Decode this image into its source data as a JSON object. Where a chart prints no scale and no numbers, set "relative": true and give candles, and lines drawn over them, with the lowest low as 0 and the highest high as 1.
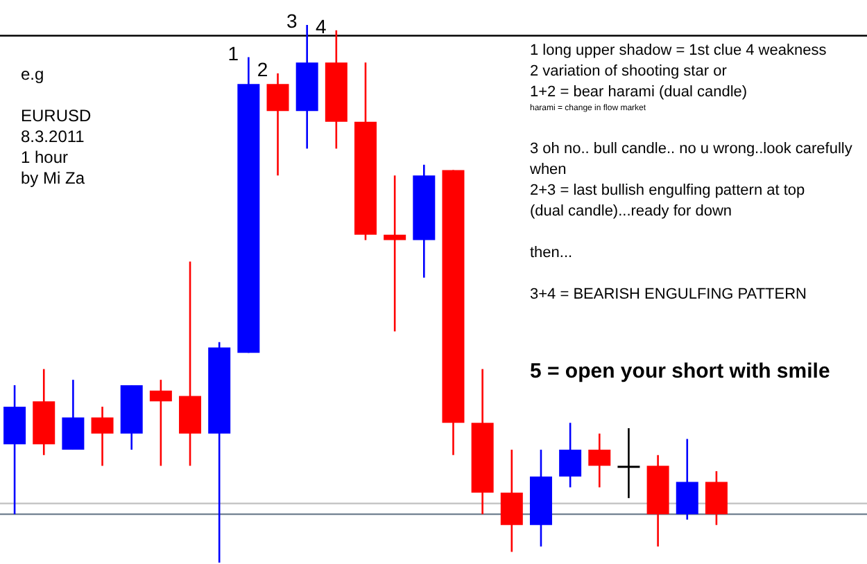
{
  "chart_data": {
    "type": "candlestick",
    "relative": true,
    "categories": [
      null,
      null,
      null,
      null,
      null,
      null,
      null,
      null,
      null,
      null,
      null,
      null,
      null,
      null,
      null,
      null,
      null,
      null,
      null,
      null,
      null,
      null,
      null,
      null,
      null
    ],
    "ohlc": [
      [
        0.22,
        0.33,
        0.09,
        0.29
      ],
      [
        0.3,
        0.36,
        0.2,
        0.22
      ],
      [
        0.21,
        0.34,
        0.21,
        0.27
      ],
      [
        0.27,
        0.29,
        0.18,
        0.24
      ],
      [
        0.24,
        0.33,
        0.21,
        0.33
      ],
      [
        0.32,
        0.34,
        0.18,
        0.3
      ],
      [
        0.31,
        0.56,
        0.18,
        0.24
      ],
      [
        0.24,
        0.41,
        0,
        0.4
      ],
      [
        0.39,
        0.94,
        0.39,
        0.89
      ],
      [
        0.89,
        0.91,
        0.72,
        0.84
      ],
      [
        0.84,
        1,
        0.77,
        0.93
      ],
      [
        0.93,
        0.99,
        0.77,
        0.82
      ],
      [
        0.82,
        0.93,
        0.6,
        0.61
      ],
      [
        0.61,
        0.72,
        0.43,
        0.6
      ],
      [
        0.6,
        0.74,
        0.53,
        0.72
      ],
      [
        0.73,
        0.73,
        0.2,
        0.26
      ],
      [
        0.26,
        0.36,
        0.09,
        0.13
      ],
      [
        0.13,
        0.21,
        0.02,
        0.07
      ],
      [
        0.07,
        0.21,
        0.03,
        0.16
      ],
      [
        0.16,
        0.26,
        0.14,
        0.21
      ],
      [
        0.21,
        0.24,
        0.14,
        0.18
      ],
      [
        0.18,
        0.25,
        0.12,
        0.18
      ],
      [
        0.18,
        0.2,
        0.03,
        0.09
      ],
      [
        0.09,
        0.23,
        0.08,
        0.15
      ],
      [
        0.15,
        0.17,
        0.07,
        0.09
      ]
    ],
    "colors": [
      "#0000ff",
      "#ff0000",
      "#0000ff",
      "#ff0000",
      "#0000ff",
      "#ff0000",
      "#ff0000",
      "#0000ff",
      "#0000ff",
      "#ff0000",
      "#0000ff",
      "#ff0000",
      "#ff0000",
      "#ff0000",
      "#0000ff",
      "#ff0000",
      "#ff0000",
      "#ff0000",
      "#0000ff",
      "#0000ff",
      "#ff0000",
      "#000000",
      "#ff0000",
      "#0000ff",
      "#ff0000"
    ],
    "value_labels": [
      null,
      null,
      null,
      null,
      null,
      null,
      null,
      null,
      "1",
      "2",
      "3",
      "4",
      null,
      null,
      null,
      null,
      null,
      null,
      null,
      null,
      null,
      null,
      null,
      null,
      null
    ],
    "ref_lines": [
      {
        "axis": "y",
        "value": 0.98,
        "color": "#000000"
      },
      {
        "axis": "y",
        "value": 0.11,
        "color": "#c0c0c0"
      },
      {
        "axis": "y",
        "value": 0.09,
        "color": "#708090"
      }
    ],
    "annotations": [
      "e.g\n\nEURUSD\n8.3.2011\n1 hour\nby Mi Za",
      "1 long upper shadow = 1st clue 4 weakness\n2 variation of shooting star or\n1+2 = bear harami (dual candle)",
      "harami = change in flow market",
      "3 oh no.. bull candle.. no u wrong..look carefully\nwhen\n2+3 = last bullish engulfing pattern at top\n(dual candle)...ready for down\n\nthen...\n\n3+4 = BEARISH ENGULFING PATTERN",
      "5 = open your short with smile"
    ]
  }
}
